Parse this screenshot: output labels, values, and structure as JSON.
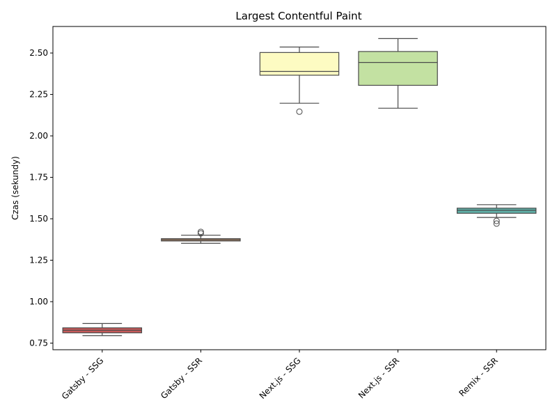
{
  "chart_data": {
    "type": "box",
    "title": "Largest Contentful Paint",
    "xlabel": "",
    "ylabel": "Czas (sekundy)",
    "ylim": [
      0.71,
      2.66
    ],
    "yticks": [
      0.75,
      1.0,
      1.25,
      1.5,
      1.75,
      2.0,
      2.25,
      2.5
    ],
    "ytick_labels": [
      "0.75",
      "1.00",
      "1.25",
      "1.50",
      "1.75",
      "2.00",
      "2.25",
      "2.50"
    ],
    "grid": false,
    "categories": [
      "Gatsby - SSG",
      "Gatsby - SSR",
      "Next.js - SSG",
      "Next.js - SSR",
      "Remix - SSR"
    ],
    "boxes": [
      {
        "category": "Gatsby - SSG",
        "color": "#c95a5a",
        "whisker_low": 0.795,
        "q1": 0.812,
        "median": 0.827,
        "q3": 0.842,
        "whisker_high": 0.868,
        "outliers": []
      },
      {
        "category": "Gatsby - SSR",
        "color": "#d9a070",
        "whisker_low": 1.352,
        "q1": 1.366,
        "median": 1.373,
        "q3": 1.38,
        "whisker_high": 1.401,
        "outliers": [
          1.412,
          1.421
        ]
      },
      {
        "category": "Next.js - SSG",
        "color": "#fdfbc2",
        "whisker_low": 2.197,
        "q1": 2.366,
        "median": 2.389,
        "q3": 2.503,
        "whisker_high": 2.536,
        "outliers": [
          2.146
        ]
      },
      {
        "category": "Next.js - SSR",
        "color": "#c3e1a2",
        "whisker_low": 2.167,
        "q1": 2.305,
        "median": 2.443,
        "q3": 2.509,
        "whisker_high": 2.587,
        "outliers": []
      },
      {
        "category": "Remix - SSR",
        "color": "#5fb0a8",
        "whisker_low": 1.508,
        "q1": 1.533,
        "median": 1.551,
        "q3": 1.564,
        "whisker_high": 1.585,
        "outliers": [
          1.487,
          1.471
        ]
      }
    ]
  }
}
